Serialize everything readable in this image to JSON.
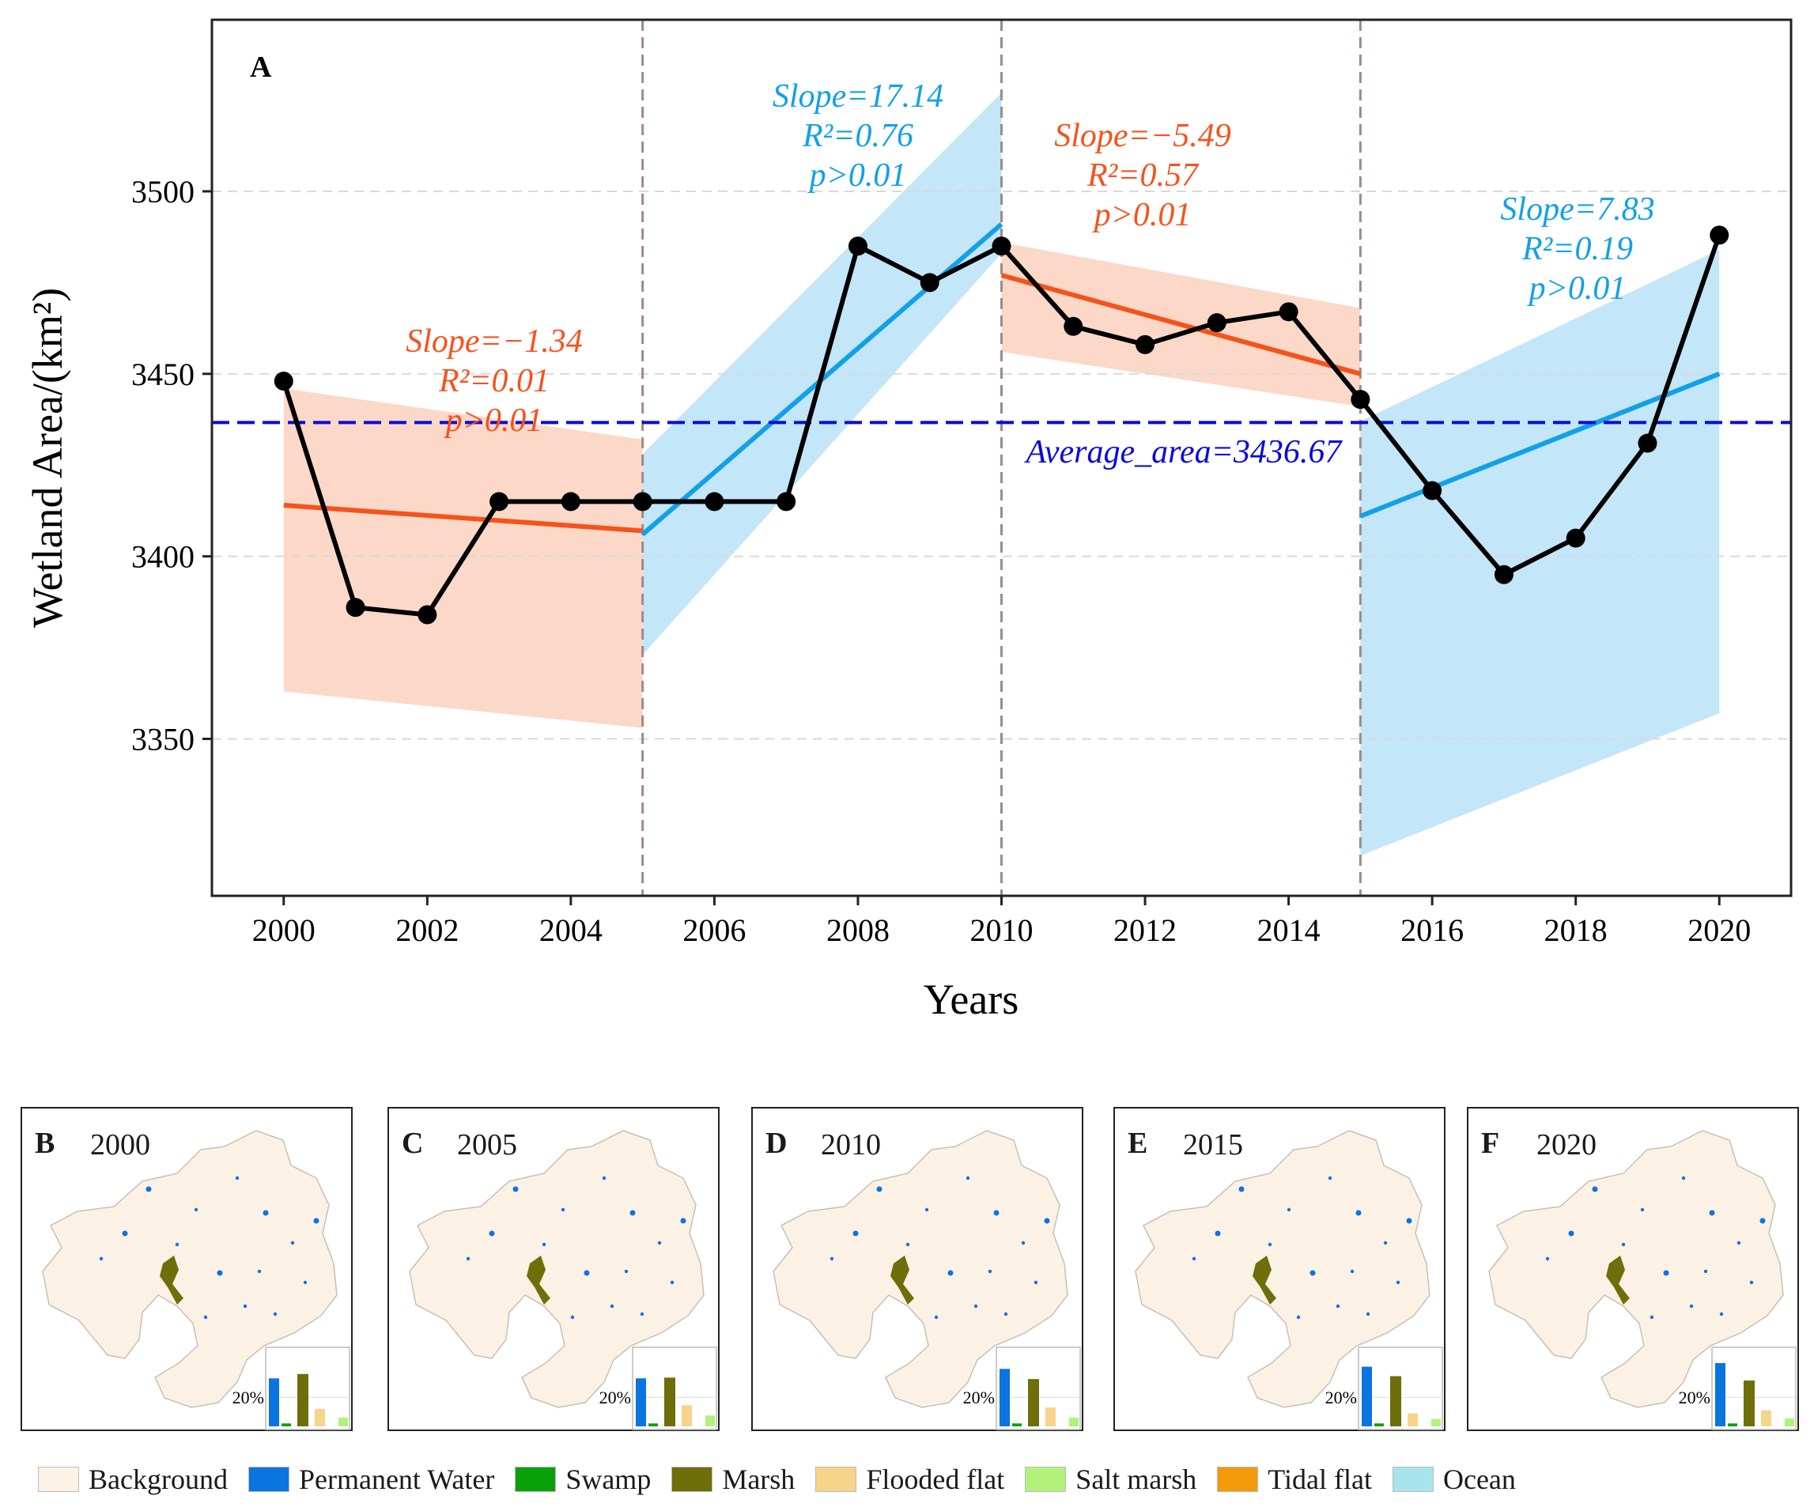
{
  "chart_data": {
    "type": "line",
    "panel_label": "A",
    "xlabel": "Years",
    "ylabel": "Wetland Area/(km²)",
    "xlim": [
      1999,
      2021
    ],
    "ylim": [
      3307,
      3547
    ],
    "x_ticks": [
      2000,
      2002,
      2004,
      2006,
      2008,
      2010,
      2012,
      2014,
      2016,
      2018,
      2020
    ],
    "y_ticks": [
      3350,
      3400,
      3450,
      3500
    ],
    "series": [
      {
        "name": "Wetland area",
        "color": "#000000",
        "x": [
          2000,
          2001,
          2002,
          2003,
          2004,
          2005,
          2006,
          2007,
          2008,
          2009,
          2010,
          2011,
          2012,
          2013,
          2014,
          2015,
          2016,
          2017,
          2018,
          2019,
          2020
        ],
        "values": [
          3448,
          3386,
          3384,
          3415,
          3415,
          3415,
          3415,
          3415,
          3485,
          3475,
          3485,
          3463,
          3458,
          3464,
          3467,
          3443,
          3418,
          3395,
          3405,
          3431,
          3488
        ]
      }
    ],
    "average_line": {
      "value": 3436.67,
      "label": "Average_area=3436.67",
      "color": "#0a0ad8"
    },
    "breakpoints": [
      2005,
      2010,
      2015
    ],
    "trend_segments": [
      {
        "x": [
          2000,
          2005
        ],
        "y": [
          3414,
          3407
        ],
        "color": "#f5531c",
        "band_color": "#fbd8c8",
        "band_upper": [
          3446,
          3432
        ],
        "band_lower": [
          3363,
          3353
        ],
        "annotation": [
          "Slope=−1.34",
          "R²=0.01",
          "p>0.01"
        ]
      },
      {
        "x": [
          2005,
          2010
        ],
        "y": [
          3406,
          3491
        ],
        "color": "#12a0e8",
        "band_color": "#c3e6f8",
        "band_upper": [
          3428,
          3527
        ],
        "band_lower": [
          3373,
          3483
        ],
        "annotation": [
          "Slope=17.14",
          "R²=0.76",
          "p>0.01"
        ]
      },
      {
        "x": [
          2010,
          2015
        ],
        "y": [
          3477,
          3450
        ],
        "color": "#f5531c",
        "band_color": "#fbd8c8",
        "band_upper": [
          3486,
          3468
        ],
        "band_lower": [
          3456,
          3441
        ],
        "annotation": [
          "Slope=−5.49",
          "R²=0.57",
          "p>0.01"
        ]
      },
      {
        "x": [
          2015,
          2020
        ],
        "y": [
          3411,
          3450
        ],
        "color": "#12a0e8",
        "band_color": "#c3e6f8",
        "band_upper": [
          3437,
          3484
        ],
        "band_lower": [
          3318,
          3357
        ],
        "annotation": [
          "Slope=7.83",
          "R²=0.19",
          "p>0.01"
        ]
      }
    ]
  },
  "maps": [
    {
      "letter": "B",
      "year": "2000",
      "inset_label": "20%",
      "bars": [
        0.66,
        0.04,
        0.72,
        0.24,
        0.12
      ]
    },
    {
      "letter": "C",
      "year": "2005",
      "inset_label": "20%",
      "bars": [
        0.66,
        0.04,
        0.67,
        0.29,
        0.15
      ]
    },
    {
      "letter": "D",
      "year": "2010",
      "inset_label": "20%",
      "bars": [
        0.79,
        0.04,
        0.65,
        0.26,
        0.12
      ]
    },
    {
      "letter": "E",
      "year": "2015",
      "inset_label": "20%",
      "bars": [
        0.82,
        0.04,
        0.69,
        0.18,
        0.1
      ]
    },
    {
      "letter": "F",
      "year": "2020",
      "inset_label": "20%",
      "bars": [
        0.87,
        0.04,
        0.63,
        0.22,
        0.11
      ]
    }
  ],
  "legend": [
    {
      "label": "Background",
      "color": "#fbf1e4"
    },
    {
      "label": "Permanent Water",
      "color": "#0a74e0"
    },
    {
      "label": "Swamp",
      "color": "#0aa00a"
    },
    {
      "label": "Marsh",
      "color": "#6e6e0a"
    },
    {
      "label": "Flooded flat",
      "color": "#f6d48a"
    },
    {
      "label": "Salt marsh",
      "color": "#b3f27a"
    },
    {
      "label": "Tidal flat",
      "color": "#f29a0a"
    },
    {
      "label": "Ocean",
      "color": "#a8e4ee"
    }
  ]
}
